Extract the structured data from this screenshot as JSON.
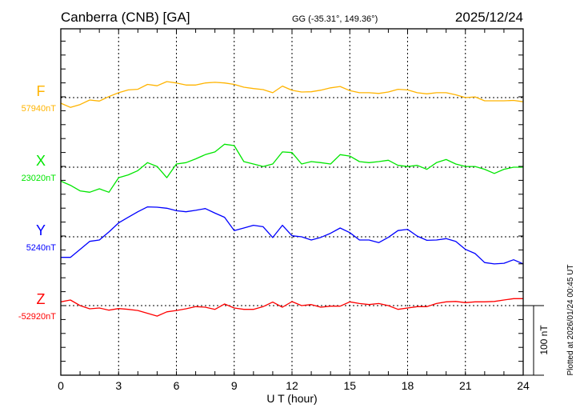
{
  "header": {
    "station": "Canberra (CNB)  [GA]",
    "coords": "GG (-35.31°, 149.36°)",
    "date": "2025/12/24"
  },
  "footer": {
    "plotted": "Plotted at 2026/01/24 00:45 UT",
    "scale_label": "100 nT"
  },
  "chart_data": {
    "type": "line",
    "title": "Canberra (CNB)  [GA]",
    "xlabel": "U T (hour)",
    "ylabel": "",
    "xlim": [
      0,
      24
    ],
    "xticks": [
      "0",
      "3",
      "6",
      "9",
      "12",
      "15",
      "18",
      "21",
      "24"
    ],
    "xtick_values": [
      0,
      3,
      6,
      9,
      12,
      15,
      18,
      21,
      24
    ],
    "grid": true,
    "scale_nT": 100,
    "x": [
      0,
      0.5,
      1,
      1.5,
      2,
      2.5,
      3,
      3.5,
      4,
      4.5,
      5,
      5.5,
      6,
      6.5,
      7,
      7.5,
      8,
      8.5,
      9,
      9.5,
      10,
      10.5,
      11,
      11.5,
      12,
      12.5,
      13,
      13.5,
      14,
      14.5,
      15,
      15.5,
      16,
      16.5,
      17,
      17.5,
      18,
      18.5,
      19,
      19.5,
      20,
      20.5,
      21,
      21.5,
      22,
      22.5,
      23,
      23.5,
      24
    ],
    "series": [
      {
        "name": "F",
        "baseline_label": "57940nT",
        "color": "#ffb400",
        "values": [
          -8,
          -14,
          -10,
          -3.5,
          -5,
          1.5,
          7,
          11,
          12,
          19,
          17,
          23,
          21,
          18,
          18,
          21,
          22,
          21,
          19,
          15,
          13,
          11.5,
          7,
          16.5,
          10.5,
          8,
          8.4,
          10.7,
          14,
          16,
          10,
          7,
          7,
          6,
          8,
          12,
          11,
          7,
          5.4,
          7,
          7,
          4,
          0,
          1,
          -4.6,
          -4.6,
          -4.6,
          -4,
          -6
        ]
      },
      {
        "name": "X",
        "baseline_label": "23020nT",
        "color": "#00e600",
        "values": [
          -20,
          -26,
          -34,
          -36,
          -31,
          -36,
          -15,
          -11,
          -5,
          6.5,
          1,
          -15,
          4.6,
          6.5,
          12,
          18,
          22,
          33,
          31,
          8,
          4.6,
          1,
          4.6,
          22,
          21,
          4.6,
          8,
          6.5,
          4.6,
          18,
          16,
          8,
          6.5,
          8,
          10,
          2.7,
          1,
          2.7,
          -3,
          6.5,
          11,
          4.6,
          1,
          1,
          -3,
          -9,
          -3,
          0,
          0
        ]
      },
      {
        "name": "Y",
        "baseline_label": "5240nT",
        "color": "#0000ff",
        "values": [
          -29.5,
          -29.5,
          -18,
          -6.5,
          -4.6,
          7,
          20,
          28,
          36,
          43,
          42.5,
          41,
          37.5,
          36,
          38,
          40.6,
          34,
          28,
          9,
          12.6,
          16.5,
          14.5,
          -1,
          16.5,
          1.5,
          0,
          -4.6,
          -0.8,
          5,
          12.6,
          6,
          -4.6,
          -4.6,
          -8.4,
          -0.8,
          9,
          10.7,
          1,
          -5,
          -4.6,
          -2.7,
          -6.5,
          -18,
          -24,
          -37,
          -39,
          -38,
          -33,
          -39
        ]
      },
      {
        "name": "Z",
        "baseline_label": "-52920nT",
        "color": "#ff0000",
        "values": [
          5.4,
          8,
          0,
          -4.6,
          -3.4,
          -6.5,
          -4.2,
          -5.4,
          -7,
          -11,
          -15,
          -9,
          -7,
          -4.6,
          -1.5,
          -2.3,
          -5.4,
          2.3,
          -3.4,
          -5.4,
          -5.4,
          -1.5,
          5,
          -2.3,
          5.7,
          0,
          1.5,
          -2.3,
          -0.8,
          -0.8,
          5.4,
          3,
          1.5,
          3,
          0,
          -5.4,
          -3.4,
          -1.5,
          -1.5,
          3,
          5.4,
          6,
          4.2,
          5.4,
          5.4,
          6,
          8,
          10,
          10
        ]
      }
    ]
  }
}
